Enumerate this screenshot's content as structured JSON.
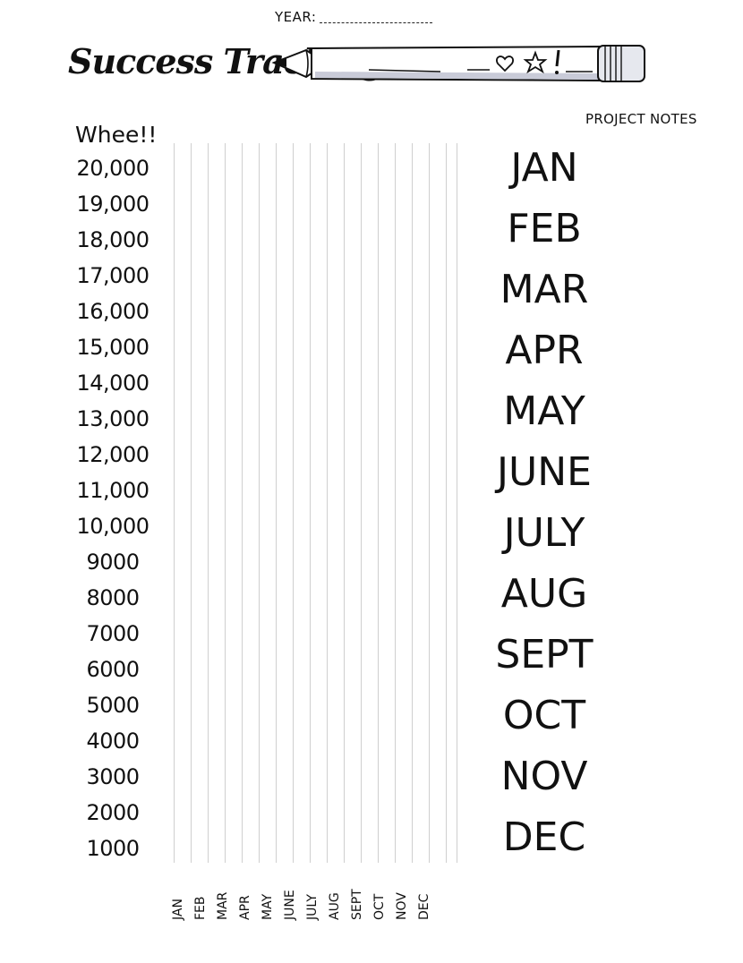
{
  "header": {
    "year_label": "YEAR:",
    "title": "Success Tracking",
    "notes_label": "PROJECT NOTES"
  },
  "pencil": {
    "icons": [
      "heart-icon",
      "star-icon",
      "exclamation-icon"
    ]
  },
  "chart": {
    "top_label": "Whee!!",
    "y_labels": [
      "20,000",
      "19,000",
      "18,000",
      "17,000",
      "16,000",
      "15,000",
      "14,000",
      "13,000",
      "12,000",
      "11,000",
      "10,000",
      "9000",
      "8000",
      "7000",
      "6000",
      "5000",
      "4000",
      "3000",
      "2000",
      "1000"
    ],
    "x_labels": [
      "JAN",
      "FEB",
      "MAR",
      "APR",
      "MAY",
      "JUNE",
      "JULY",
      "AUG",
      "SEPT",
      "OCT",
      "NOV",
      "DEC"
    ]
  },
  "notes": {
    "months": [
      "JAN",
      "FEB",
      "MAR",
      "APR",
      "MAY",
      "JUNE",
      "JULY",
      "AUG",
      "SEPT",
      "OCT",
      "NOV",
      "DEC"
    ]
  }
}
